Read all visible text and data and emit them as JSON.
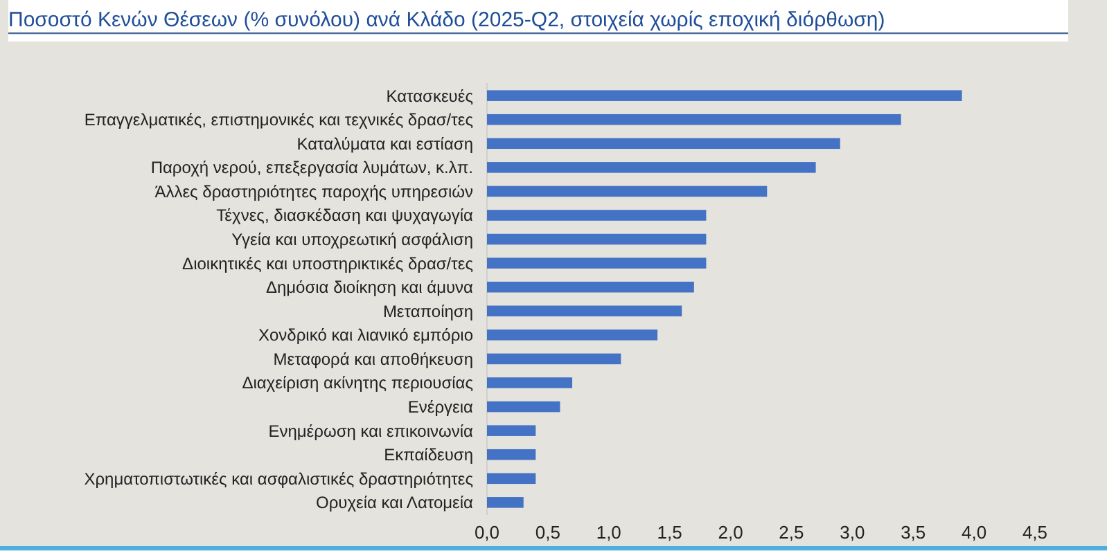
{
  "chart_data": {
    "type": "bar",
    "orientation": "horizontal",
    "title": "Ποσοστό Κενών Θέσεων (% συνόλου) ανά Κλάδο (2025-Q2, στοιχεία χωρίς εποχική διόρθωση)",
    "categories": [
      "Κατασκευές",
      "Επαγγελματικές, επιστημονικές και τεχνικές δρασ/τες",
      "Καταλύματα και εστίαση",
      "Παροχή νερού, επεξεργασία λυμάτων, κ.λπ.",
      "Άλλες δραστηριότητες παροχής υπηρεσιών",
      "Τέχνες, διασκέδαση και ψυχαγωγία",
      "Υγεία και υποχρεωτική ασφάλιση",
      "Διοικητικές και υποστηρικτικές δρασ/τες",
      "Δημόσια διοίκηση και άμυνα",
      "Μεταποίηση",
      "Χονδρικό και λιανικό εμπόριο",
      "Μεταφορά και αποθήκευση",
      "Διαχείριση ακίνητης περιουσίας",
      "Ενέργεια",
      "Ενημέρωση και επικοινωνία",
      "Εκπαίδευση",
      "Χρηματοπιστωτικές και ασφαλιστικές δραστηριότητες",
      "Ορυχεία και Λατομεία"
    ],
    "values": [
      3.9,
      3.4,
      2.9,
      2.7,
      2.3,
      1.8,
      1.8,
      1.8,
      1.7,
      1.6,
      1.4,
      1.1,
      0.7,
      0.6,
      0.4,
      0.4,
      0.4,
      0.3
    ],
    "color": "#4472c4",
    "xlim": [
      0,
      4.5
    ],
    "xticks": [
      {
        "value": 0,
        "label": "0,0"
      },
      {
        "value": 0.5,
        "label": "0,5"
      },
      {
        "value": 1,
        "label": "1,0"
      },
      {
        "value": 1.5,
        "label": "1,5"
      },
      {
        "value": 2,
        "label": "2,0"
      },
      {
        "value": 2.5,
        "label": "2,5"
      },
      {
        "value": 3,
        "label": "3,0"
      },
      {
        "value": 3.5,
        "label": "3,5"
      },
      {
        "value": 4,
        "label": "4,0"
      },
      {
        "value": 4.5,
        "label": "4,5"
      }
    ],
    "grid": false
  }
}
